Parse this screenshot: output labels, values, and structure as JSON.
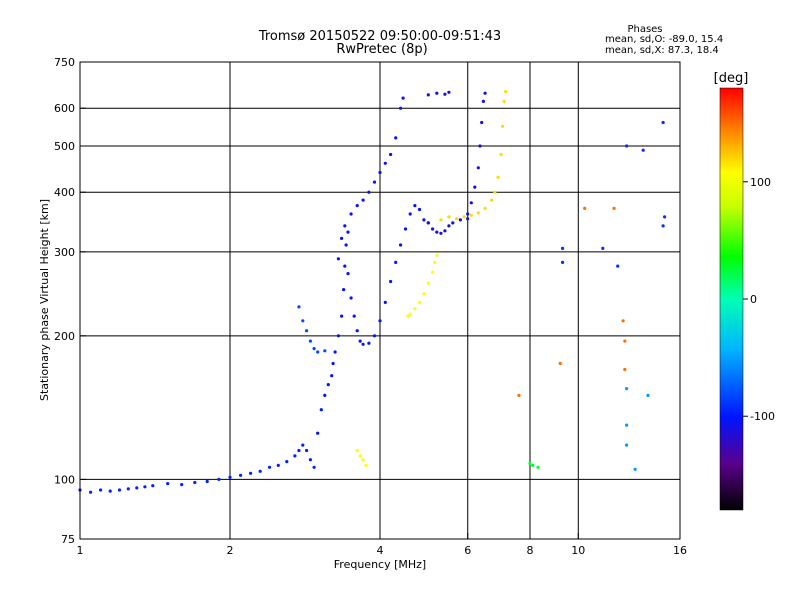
{
  "chart_data": {
    "type": "scatter",
    "title": "Tromsø 20150522 09:50:00-09:51:43",
    "subtitle": "RwPretec (8p)",
    "xlabel": "Frequency [MHz]",
    "ylabel": "Stationary phase Virtual Height [km]",
    "x_scale": "log",
    "y_scale": "log",
    "xlim": [
      1,
      16
    ],
    "ylim": [
      75,
      750
    ],
    "x_ticks": [
      {
        "value": 1,
        "label": "1"
      },
      {
        "value": 2,
        "label": "2"
      },
      {
        "value": 4,
        "label": "4"
      },
      {
        "value": 6,
        "label": "6"
      },
      {
        "value": 8,
        "label": "8"
      },
      {
        "value": 10,
        "label": "10"
      },
      {
        "value": 16,
        "label": "16"
      }
    ],
    "y_ticks": [
      {
        "value": 75,
        "label": "75"
      },
      {
        "value": 100,
        "label": "100"
      },
      {
        "value": 200,
        "label": "200"
      },
      {
        "value": 300,
        "label": "300"
      },
      {
        "value": 400,
        "label": "400"
      },
      {
        "value": 500,
        "label": "500"
      },
      {
        "value": 600,
        "label": "600"
      },
      {
        "value": 750,
        "label": "750"
      }
    ],
    "grid": true,
    "phases_box": {
      "heading": "Phases",
      "line1": "mean, sd,O: -89.0, 15.4",
      "line2": "mean, sd,X:  87.3, 18.4"
    },
    "colorbar": {
      "label": "[deg]",
      "range": [
        -180,
        180
      ],
      "ticks": [
        {
          "value": 100,
          "label": "100"
        },
        {
          "value": 0,
          "label": "0"
        },
        {
          "value": -100,
          "label": "-100"
        }
      ]
    },
    "traces": [
      {
        "phase": -95,
        "points": [
          [
            1.0,
            95
          ],
          [
            1.05,
            94
          ],
          [
            1.1,
            95
          ],
          [
            1.15,
            94.5
          ],
          [
            1.2,
            95
          ],
          [
            1.25,
            95.5
          ],
          [
            1.3,
            96
          ],
          [
            1.35,
            96.5
          ],
          [
            1.4,
            97
          ],
          [
            1.5,
            98
          ],
          [
            1.6,
            97.5
          ],
          [
            1.7,
            98.5
          ],
          [
            1.8,
            99
          ],
          [
            1.9,
            100
          ],
          [
            2.0,
            101
          ],
          [
            2.1,
            102
          ],
          [
            2.2,
            103
          ],
          [
            2.3,
            104
          ],
          [
            2.4,
            106
          ],
          [
            2.5,
            107
          ],
          [
            2.6,
            109
          ],
          [
            2.7,
            112
          ],
          [
            2.75,
            115
          ],
          [
            2.8,
            118
          ],
          [
            2.85,
            115
          ],
          [
            2.9,
            110
          ],
          [
            2.95,
            106
          ]
        ]
      },
      {
        "phase": -100,
        "points": [
          [
            3.0,
            125
          ],
          [
            3.05,
            140
          ],
          [
            3.1,
            150
          ],
          [
            3.15,
            158
          ],
          [
            3.2,
            165
          ],
          [
            3.22,
            175
          ],
          [
            3.25,
            185
          ],
          [
            3.3,
            200
          ],
          [
            3.35,
            220
          ],
          [
            3.38,
            250
          ],
          [
            3.4,
            280
          ],
          [
            3.42,
            310
          ],
          [
            3.45,
            330
          ]
        ]
      },
      {
        "phase": -100,
        "points": [
          [
            3.45,
            270
          ],
          [
            3.5,
            240
          ],
          [
            3.55,
            220
          ],
          [
            3.6,
            205
          ],
          [
            3.65,
            195
          ],
          [
            3.7,
            192
          ],
          [
            3.8,
            193
          ],
          [
            3.9,
            200
          ],
          [
            4.0,
            215
          ],
          [
            4.1,
            235
          ],
          [
            4.2,
            260
          ],
          [
            4.3,
            285
          ],
          [
            4.4,
            310
          ],
          [
            4.5,
            335
          ],
          [
            4.6,
            360
          ],
          [
            4.7,
            375
          ],
          [
            4.8,
            368
          ],
          [
            4.9,
            350
          ],
          [
            5.0,
            345
          ]
        ]
      },
      {
        "phase": -105,
        "points": [
          [
            3.3,
            290
          ],
          [
            3.35,
            320
          ],
          [
            3.4,
            340
          ],
          [
            3.5,
            360
          ],
          [
            3.6,
            375
          ],
          [
            3.7,
            385
          ],
          [
            3.8,
            400
          ],
          [
            3.9,
            420
          ],
          [
            4.0,
            440
          ],
          [
            4.1,
            460
          ],
          [
            4.2,
            480
          ],
          [
            4.3,
            520
          ],
          [
            4.4,
            600
          ],
          [
            4.45,
            630
          ]
        ]
      },
      {
        "phase": 110,
        "points": [
          [
            4.55,
            220
          ],
          [
            4.6,
            222
          ],
          [
            4.7,
            228
          ],
          [
            4.8,
            235
          ],
          [
            4.9,
            245
          ],
          [
            5.0,
            258
          ],
          [
            5.1,
            272
          ],
          [
            5.15,
            285
          ],
          [
            5.2,
            295
          ]
        ]
      },
      {
        "phase": -110,
        "points": [
          [
            5.0,
            345
          ],
          [
            5.1,
            335
          ],
          [
            5.2,
            330
          ],
          [
            5.3,
            328
          ],
          [
            5.4,
            332
          ],
          [
            5.5,
            340
          ],
          [
            5.6,
            345
          ],
          [
            5.8,
            350
          ],
          [
            6.0,
            352
          ]
        ]
      },
      {
        "phase": 120,
        "points": [
          [
            5.3,
            350
          ],
          [
            5.5,
            355
          ],
          [
            5.7,
            352
          ],
          [
            5.9,
            355
          ],
          [
            6.1,
            358
          ],
          [
            6.3,
            362
          ],
          [
            6.5,
            370
          ],
          [
            6.7,
            385
          ],
          [
            6.8,
            400
          ],
          [
            6.9,
            430
          ],
          [
            7.0,
            480
          ],
          [
            7.05,
            550
          ],
          [
            7.1,
            620
          ],
          [
            7.15,
            650
          ]
        ]
      },
      {
        "phase": -110,
        "points": [
          [
            6.0,
            360
          ],
          [
            6.1,
            380
          ],
          [
            6.2,
            410
          ],
          [
            6.3,
            450
          ],
          [
            6.35,
            500
          ],
          [
            6.4,
            560
          ],
          [
            6.45,
            620
          ],
          [
            6.5,
            645
          ]
        ]
      },
      {
        "phase": -110,
        "points": [
          [
            5.0,
            640
          ],
          [
            5.2,
            645
          ],
          [
            5.4,
            642
          ],
          [
            5.5,
            648
          ]
        ]
      },
      {
        "phase": -80,
        "points": [
          [
            2.75,
            230
          ],
          [
            2.8,
            215
          ],
          [
            2.85,
            205
          ],
          [
            2.9,
            195
          ],
          [
            2.95,
            188
          ],
          [
            3.0,
            185
          ],
          [
            3.1,
            186
          ]
        ]
      },
      {
        "phase": 110,
        "points": [
          [
            3.6,
            115
          ],
          [
            3.65,
            112
          ],
          [
            3.7,
            110
          ],
          [
            3.75,
            107
          ]
        ]
      },
      {
        "phase": -90,
        "points": [
          [
            9.3,
            305
          ],
          [
            9.3,
            285
          ],
          [
            11.2,
            305
          ],
          [
            12.0,
            280
          ],
          [
            13.5,
            490
          ],
          [
            14.8,
            560
          ],
          [
            14.9,
            355
          ],
          [
            14.8,
            340
          ],
          [
            12.5,
            500
          ]
        ]
      },
      {
        "phase": 30,
        "points": [
          [
            8.0,
            108
          ],
          [
            8.1,
            107
          ],
          [
            8.3,
            106
          ]
        ]
      },
      {
        "phase": -50,
        "points": [
          [
            12.5,
            155
          ],
          [
            12.5,
            130
          ],
          [
            12.5,
            118
          ],
          [
            13.0,
            105
          ],
          [
            13.8,
            150
          ]
        ]
      },
      {
        "phase": 150,
        "points": [
          [
            7.6,
            150
          ],
          [
            9.2,
            175
          ],
          [
            11.8,
            370
          ],
          [
            12.3,
            215
          ],
          [
            12.4,
            195
          ],
          [
            12.4,
            170
          ],
          [
            10.3,
            370
          ]
        ]
      }
    ]
  }
}
